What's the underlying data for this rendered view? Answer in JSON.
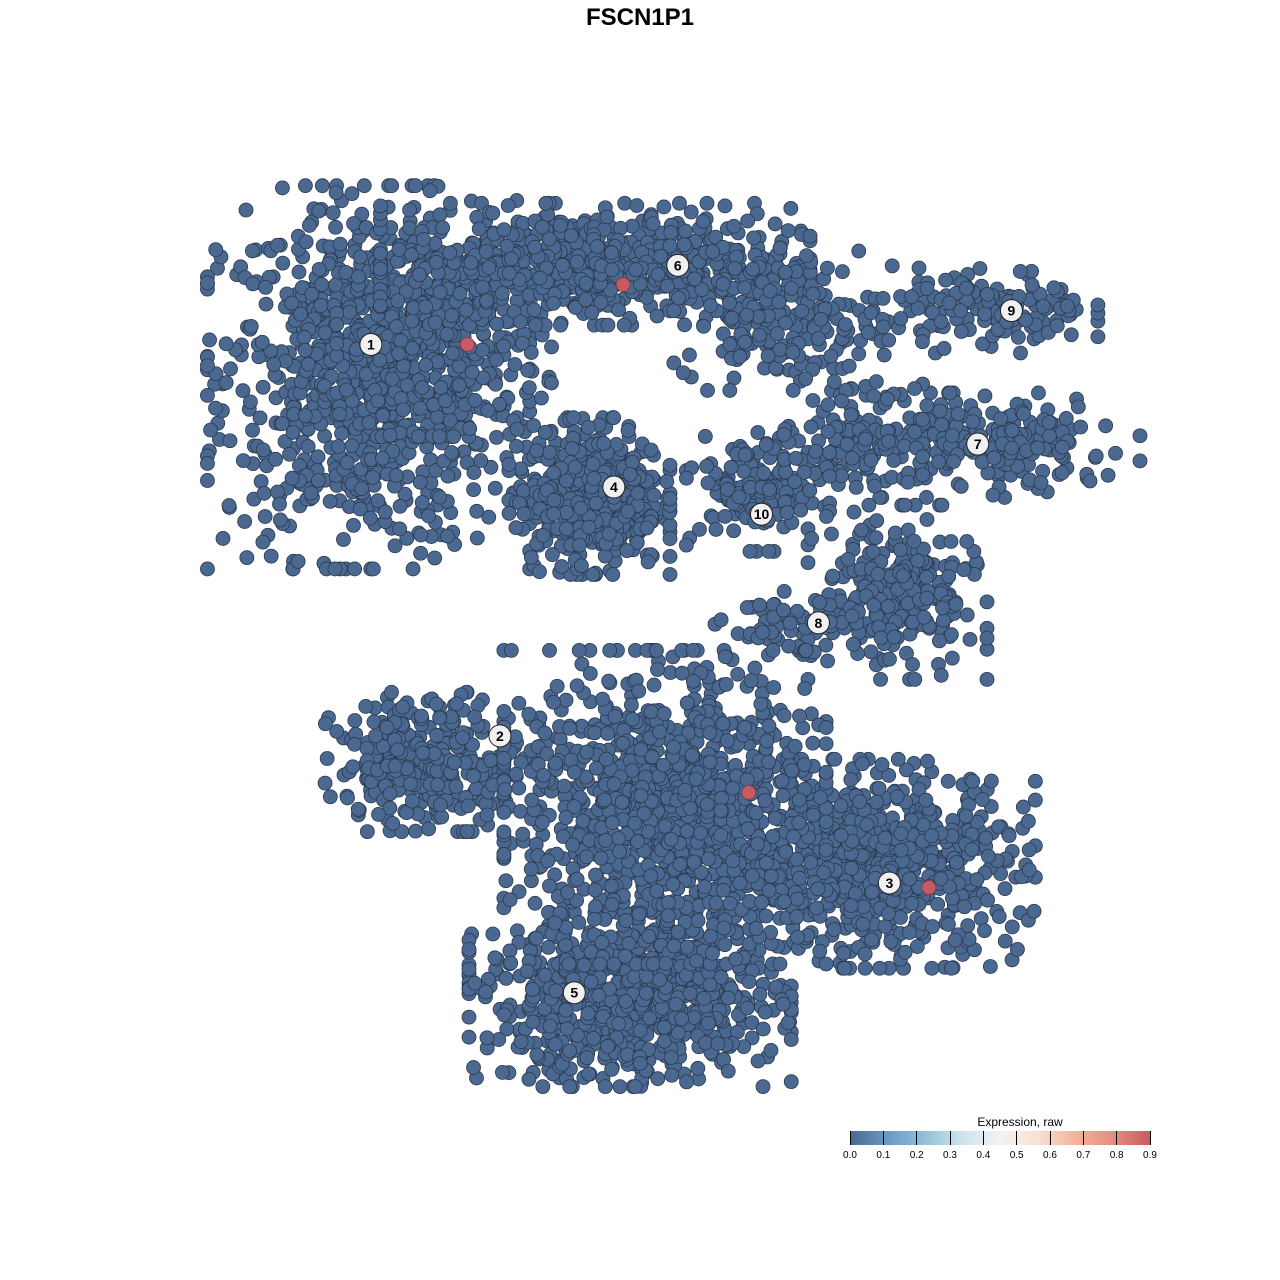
{
  "chart_data": {
    "type": "scatter",
    "title": "FSCN1P1",
    "xlabel": "",
    "ylabel": "",
    "xlim": [
      -40,
      40
    ],
    "ylim": [
      -40,
      40
    ],
    "grid": false,
    "axes_visible": false,
    "point_color_low": "#4a6890",
    "point_color_high": "#c85a63",
    "point_outline": "#2b3a4f",
    "clusters": [
      {
        "label": "1",
        "label_pos": [
          -25.3,
          25.9
        ],
        "blobs": [
          {
            "c": [
              -25.5,
              23
            ],
            "s": [
              9,
              11
            ],
            "n": 900
          },
          {
            "c": [
              -19,
              27
            ],
            "s": [
              6,
              6
            ],
            "n": 300
          }
        ]
      },
      {
        "label": "6",
        "label_pos": [
          1.1,
          32.9
        ],
        "blobs": [
          {
            "c": [
              -6,
              33
            ],
            "s": [
              12,
              3.5
            ],
            "n": 700
          },
          {
            "c": [
              10,
              28
            ],
            "s": [
              6,
              4
            ],
            "n": 200
          }
        ]
      },
      {
        "label": "4",
        "label_pos": [
          -4.4,
          13.3
        ],
        "blobs": [
          {
            "c": [
              -6.5,
              12.5
            ],
            "s": [
              4.5,
              4.5
            ],
            "n": 500
          }
        ]
      },
      {
        "label": "9",
        "label_pos": [
          29.8,
          28.9
        ],
        "blobs": [
          {
            "c": [
              28,
              29
            ],
            "s": [
              6,
              2.5
            ],
            "n": 150
          }
        ]
      },
      {
        "label": "7",
        "label_pos": [
          26.9,
          17.1
        ],
        "blobs": [
          {
            "c": [
              27,
              17
            ],
            "s": [
              9,
              3
            ],
            "n": 250
          },
          {
            "c": [
              16,
              18
            ],
            "s": [
              4,
              3
            ],
            "n": 80
          }
        ]
      },
      {
        "label": "10",
        "label_pos": [
          8.3,
          10.9
        ],
        "blobs": [
          {
            "c": [
              8,
              13
            ],
            "s": [
              4,
              3.5
            ],
            "n": 150
          }
        ]
      },
      {
        "label": "8",
        "label_pos": [
          13.2,
          1.3
        ],
        "blobs": [
          {
            "c": [
              20,
              4
            ],
            "s": [
              5,
              5
            ],
            "n": 250
          },
          {
            "c": [
              12,
              1
            ],
            "s": [
              5,
              2
            ],
            "n": 80
          }
        ]
      },
      {
        "label": "2",
        "label_pos": [
          -14.2,
          -8.7
        ],
        "blobs": [
          {
            "c": [
              -20,
              -11
            ],
            "s": [
              6,
              4
            ],
            "n": 300
          }
        ]
      },
      {
        "label": "3",
        "label_pos": [
          19.3,
          -21.7
        ],
        "blobs": [
          {
            "c": [
              18,
              -20
            ],
            "s": [
              9,
              6
            ],
            "n": 700
          }
        ]
      },
      {
        "label": "5",
        "label_pos": [
          -7.8,
          -31.4
        ],
        "blobs": [
          {
            "c": [
              -3,
              -32
            ],
            "s": [
              9,
              5
            ],
            "n": 800
          },
          {
            "c": [
              0,
              -15
            ],
            "s": [
              9,
              9
            ],
            "n": 1100
          }
        ]
      }
    ],
    "highlighted_points": [
      {
        "x": -17.0,
        "y": 25.9,
        "value": 0.9
      },
      {
        "x": -3.6,
        "y": 31.2,
        "value": 0.9
      },
      {
        "x": 7.2,
        "y": -13.7,
        "value": 0.9
      },
      {
        "x": 22.7,
        "y": -22.1,
        "value": 0.9
      }
    ],
    "baseline_value": 0.0,
    "legend": {
      "title": "Expression, raw",
      "position": "bottom-right",
      "ticks": [
        "0.0",
        "0.1",
        "0.2",
        "0.3",
        "0.4",
        "0.5",
        "0.6",
        "0.7",
        "0.8",
        "0.9"
      ],
      "range": [
        0,
        0.9
      ],
      "colors": [
        "#4a6890",
        "#6a9ac4",
        "#93c0da",
        "#cfe3ec",
        "#f2f2f2",
        "#fbe0d3",
        "#f3b49b",
        "#e58e7f",
        "#c85a63"
      ]
    }
  }
}
